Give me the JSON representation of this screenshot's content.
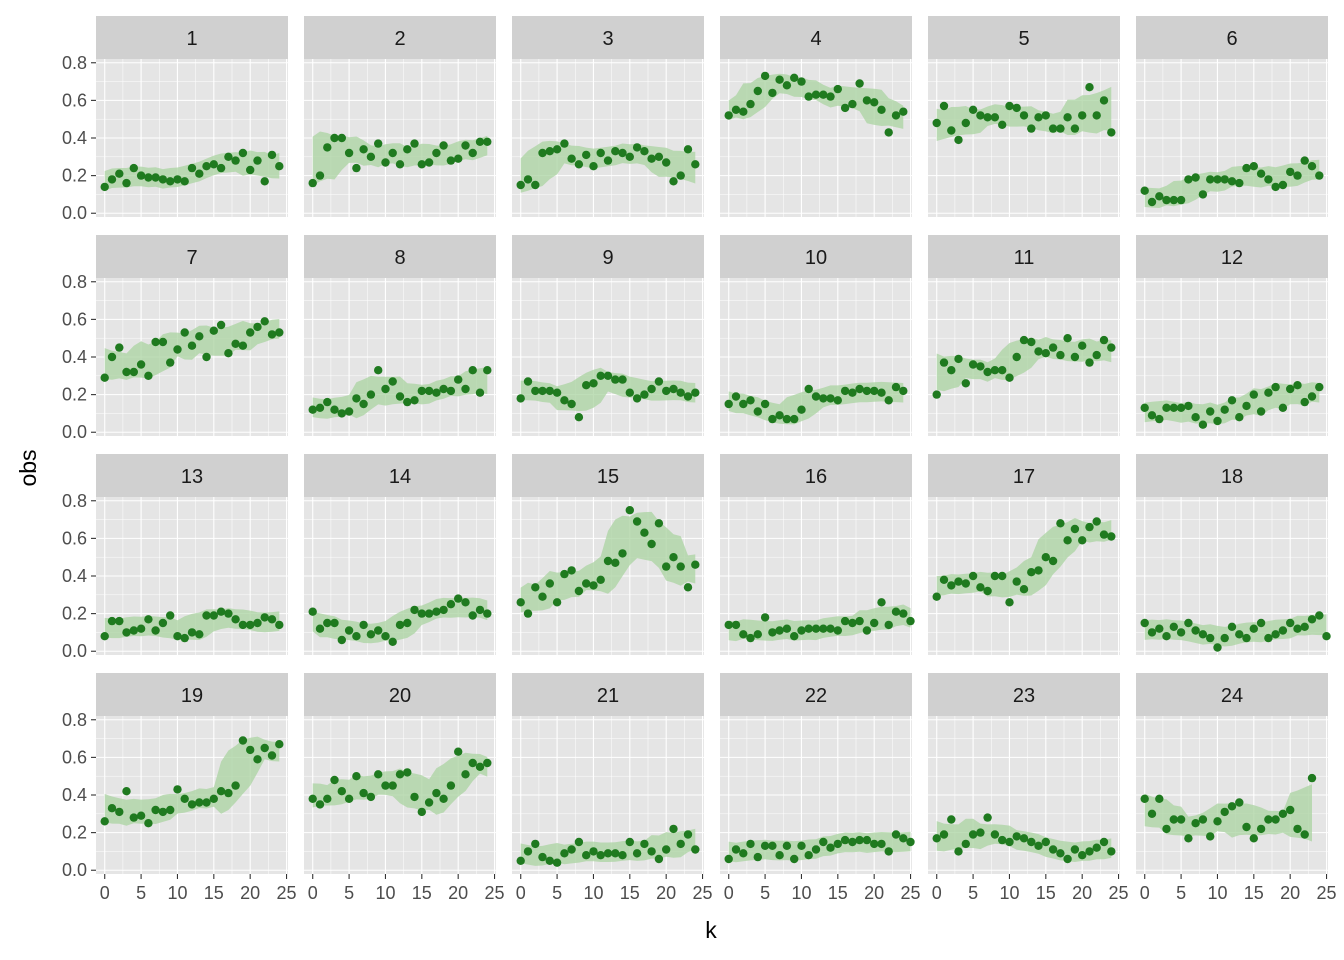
{
  "chart_data": {
    "type": "scatter",
    "layout": "facet_wrap",
    "xlabel": "k",
    "ylabel": "obs",
    "xlim": [
      -1.2,
      25.2
    ],
    "ylim": [
      -0.02,
      0.82
    ],
    "x_ticks": [
      0,
      5,
      10,
      15,
      20,
      25
    ],
    "y_ticks": [
      0.0,
      0.2,
      0.4,
      0.6,
      0.8
    ],
    "y_tick_labels": [
      "0.0",
      "0.2",
      "0.4",
      "0.6",
      "0.8"
    ],
    "x_tick_labels": [
      "0",
      "5",
      "10",
      "15",
      "20",
      "25"
    ],
    "ribbon": "confidence band around fitted trend",
    "colors": {
      "points": "#1f7a1f",
      "ribbon": "#a9d3a0",
      "panel_bg": "#e5e5e5",
      "strip_bg": "#d0d0d0"
    },
    "panels": [
      {
        "label": "1",
        "values": [
          0.14,
          0.18,
          0.21,
          0.16,
          0.24,
          0.2,
          0.19,
          0.19,
          0.18,
          0.17,
          0.18,
          0.17,
          0.24,
          0.21,
          0.25,
          0.26,
          0.24,
          0.3,
          0.28,
          0.32,
          0.23,
          0.28,
          0.17,
          0.31,
          0.25
        ]
      },
      {
        "label": "2",
        "values": [
          0.16,
          0.2,
          0.35,
          0.4,
          0.4,
          0.32,
          0.24,
          0.34,
          0.3,
          0.37,
          0.27,
          0.32,
          0.26,
          0.34,
          0.37,
          0.26,
          0.27,
          0.32,
          0.36,
          0.28,
          0.29,
          0.36,
          0.32,
          0.38,
          0.38
        ]
      },
      {
        "label": "3",
        "values": [
          0.15,
          0.18,
          0.15,
          0.32,
          0.33,
          0.34,
          0.37,
          0.29,
          0.26,
          0.31,
          0.25,
          0.32,
          0.28,
          0.33,
          0.32,
          0.3,
          0.35,
          0.33,
          0.29,
          0.3,
          0.27,
          0.17,
          0.2,
          0.34,
          0.26
        ]
      },
      {
        "label": "4",
        "values": [
          0.52,
          0.55,
          0.54,
          0.58,
          0.65,
          0.73,
          0.64,
          0.71,
          0.68,
          0.72,
          0.7,
          0.62,
          0.63,
          0.63,
          0.62,
          0.66,
          0.56,
          0.58,
          0.69,
          0.6,
          0.59,
          0.55,
          0.43,
          0.52,
          0.54
        ]
      },
      {
        "label": "5",
        "values": [
          0.48,
          0.57,
          0.44,
          0.39,
          0.48,
          0.55,
          0.52,
          0.51,
          0.51,
          0.47,
          0.57,
          0.56,
          0.52,
          0.45,
          0.51,
          0.52,
          0.45,
          0.45,
          0.51,
          0.45,
          0.52,
          0.67,
          0.52,
          0.6,
          0.43
        ]
      },
      {
        "label": "6",
        "values": [
          0.12,
          0.06,
          0.09,
          0.07,
          0.07,
          0.07,
          0.18,
          0.19,
          0.1,
          0.18,
          0.18,
          0.18,
          0.17,
          0.16,
          0.24,
          0.25,
          0.21,
          0.18,
          0.14,
          0.15,
          0.22,
          0.2,
          0.28,
          0.25,
          0.2
        ]
      },
      {
        "label": "7",
        "values": [
          0.29,
          0.4,
          0.45,
          0.32,
          0.32,
          0.36,
          0.3,
          0.48,
          0.48,
          0.37,
          0.44,
          0.53,
          0.46,
          0.51,
          0.4,
          0.54,
          0.57,
          0.42,
          0.47,
          0.46,
          0.53,
          0.56,
          0.59,
          0.52,
          0.53
        ]
      },
      {
        "label": "8",
        "values": [
          0.12,
          0.13,
          0.16,
          0.12,
          0.1,
          0.11,
          0.18,
          0.15,
          0.2,
          0.33,
          0.23,
          0.27,
          0.19,
          0.16,
          0.17,
          0.22,
          0.22,
          0.21,
          0.23,
          0.22,
          0.28,
          0.23,
          0.33,
          0.21,
          0.33
        ]
      },
      {
        "label": "9",
        "values": [
          0.18,
          0.27,
          0.22,
          0.22,
          0.22,
          0.21,
          0.17,
          0.15,
          0.08,
          0.25,
          0.26,
          0.3,
          0.3,
          0.28,
          0.28,
          0.21,
          0.18,
          0.2,
          0.23,
          0.27,
          0.22,
          0.23,
          0.21,
          0.19,
          0.21
        ]
      },
      {
        "label": "10",
        "values": [
          0.15,
          0.19,
          0.15,
          0.17,
          0.11,
          0.15,
          0.07,
          0.09,
          0.07,
          0.07,
          0.12,
          0.23,
          0.19,
          0.18,
          0.18,
          0.17,
          0.22,
          0.21,
          0.23,
          0.22,
          0.22,
          0.21,
          0.17,
          0.24,
          0.22
        ]
      },
      {
        "label": "11",
        "values": [
          0.2,
          0.37,
          0.33,
          0.39,
          0.26,
          0.36,
          0.35,
          0.32,
          0.33,
          0.33,
          0.29,
          0.4,
          0.49,
          0.48,
          0.43,
          0.42,
          0.45,
          0.41,
          0.5,
          0.4,
          0.46,
          0.37,
          0.41,
          0.49,
          0.45
        ]
      },
      {
        "label": "12",
        "values": [
          0.13,
          0.09,
          0.07,
          0.13,
          0.13,
          0.13,
          0.14,
          0.08,
          0.04,
          0.11,
          0.06,
          0.12,
          0.17,
          0.08,
          0.14,
          0.2,
          0.11,
          0.21,
          0.24,
          0.13,
          0.23,
          0.25,
          0.16,
          0.19,
          0.24
        ]
      },
      {
        "label": "13",
        "values": [
          0.08,
          0.16,
          0.16,
          0.1,
          0.11,
          0.12,
          0.17,
          0.11,
          0.15,
          0.19,
          0.08,
          0.07,
          0.1,
          0.09,
          0.19,
          0.19,
          0.21,
          0.2,
          0.17,
          0.14,
          0.14,
          0.15,
          0.18,
          0.17,
          0.14
        ]
      },
      {
        "label": "14",
        "values": [
          0.21,
          0.12,
          0.15,
          0.15,
          0.06,
          0.11,
          0.08,
          0.14,
          0.09,
          0.11,
          0.08,
          0.05,
          0.14,
          0.15,
          0.22,
          0.2,
          0.2,
          0.21,
          0.22,
          0.25,
          0.28,
          0.26,
          0.19,
          0.22,
          0.2
        ]
      },
      {
        "label": "15",
        "values": [
          0.26,
          0.2,
          0.34,
          0.29,
          0.36,
          0.26,
          0.41,
          0.43,
          0.32,
          0.36,
          0.35,
          0.38,
          0.48,
          0.47,
          0.52,
          0.75,
          0.69,
          0.63,
          0.57,
          0.68,
          0.45,
          0.5,
          0.45,
          0.34,
          0.46
        ]
      },
      {
        "label": "16",
        "values": [
          0.14,
          0.14,
          0.09,
          0.07,
          0.09,
          0.18,
          0.1,
          0.11,
          0.12,
          0.08,
          0.11,
          0.12,
          0.12,
          0.12,
          0.12,
          0.11,
          0.16,
          0.15,
          0.16,
          0.11,
          0.15,
          0.26,
          0.14,
          0.21,
          0.2,
          0.16
        ]
      },
      {
        "label": "17",
        "values": [
          0.29,
          0.38,
          0.35,
          0.37,
          0.36,
          0.4,
          0.34,
          0.32,
          0.4,
          0.4,
          0.26,
          0.37,
          0.33,
          0.42,
          0.43,
          0.5,
          0.48,
          0.68,
          0.59,
          0.65,
          0.59,
          0.66,
          0.69,
          0.62,
          0.61
        ]
      },
      {
        "label": "18",
        "values": [
          0.15,
          0.1,
          0.12,
          0.08,
          0.13,
          0.1,
          0.15,
          0.11,
          0.09,
          0.07,
          0.02,
          0.07,
          0.13,
          0.09,
          0.07,
          0.12,
          0.15,
          0.07,
          0.09,
          0.11,
          0.15,
          0.12,
          0.13,
          0.17,
          0.19,
          0.08
        ]
      },
      {
        "label": "19",
        "values": [
          0.26,
          0.33,
          0.31,
          0.42,
          0.28,
          0.29,
          0.25,
          0.32,
          0.31,
          0.32,
          0.43,
          0.38,
          0.35,
          0.36,
          0.36,
          0.38,
          0.42,
          0.41,
          0.45,
          0.69,
          0.64,
          0.59,
          0.65,
          0.61,
          0.67
        ]
      },
      {
        "label": "20",
        "values": [
          0.38,
          0.35,
          0.38,
          0.48,
          0.42,
          0.38,
          0.5,
          0.41,
          0.39,
          0.51,
          0.45,
          0.45,
          0.51,
          0.52,
          0.39,
          0.31,
          0.36,
          0.41,
          0.38,
          0.45,
          0.63,
          0.51,
          0.57,
          0.55,
          0.57
        ]
      },
      {
        "label": "21",
        "values": [
          0.05,
          0.1,
          0.14,
          0.07,
          0.05,
          0.04,
          0.09,
          0.11,
          0.15,
          0.08,
          0.1,
          0.08,
          0.09,
          0.09,
          0.08,
          0.15,
          0.09,
          0.14,
          0.1,
          0.06,
          0.11,
          0.22,
          0.14,
          0.19,
          0.11
        ]
      },
      {
        "label": "22",
        "values": [
          0.06,
          0.11,
          0.09,
          0.14,
          0.07,
          0.13,
          0.13,
          0.08,
          0.13,
          0.06,
          0.13,
          0.08,
          0.11,
          0.15,
          0.12,
          0.14,
          0.16,
          0.15,
          0.16,
          0.16,
          0.14,
          0.14,
          0.1,
          0.19,
          0.17,
          0.15
        ]
      },
      {
        "label": "23",
        "values": [
          0.17,
          0.19,
          0.27,
          0.1,
          0.14,
          0.19,
          0.2,
          0.28,
          0.19,
          0.16,
          0.15,
          0.18,
          0.17,
          0.15,
          0.13,
          0.15,
          0.11,
          0.09,
          0.06,
          0.11,
          0.08,
          0.1,
          0.12,
          0.15,
          0.1
        ]
      },
      {
        "label": "24",
        "values": [
          0.38,
          0.3,
          0.38,
          0.22,
          0.27,
          0.27,
          0.17,
          0.25,
          0.27,
          0.18,
          0.26,
          0.31,
          0.34,
          0.36,
          0.23,
          0.17,
          0.22,
          0.27,
          0.27,
          0.3,
          0.32,
          0.22,
          0.19,
          0.49
        ]
      }
    ]
  }
}
